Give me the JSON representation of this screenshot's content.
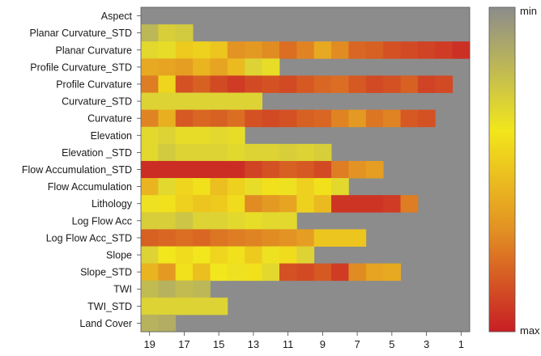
{
  "chart_data": {
    "type": "heatmap",
    "title": "",
    "xlabel": "",
    "ylabel": "",
    "rows": [
      "Aspect",
      "Planar Curvature_STD",
      "Planar Curvature",
      "Profile Curvature_STD",
      "Profile Curvature",
      "Curvature_STD",
      "Curvature",
      "Elevation",
      "Elevation _STD",
      "Flow Accumulation_STD",
      "Flow Accumulation",
      "Lithology",
      "Log Flow Acc",
      "Log Flow Acc_STD",
      "Slope",
      "Slope_STD",
      "TWI",
      "TWI_STD",
      "Land Cover"
    ],
    "columns": [
      19,
      18,
      17,
      16,
      15,
      14,
      13,
      12,
      11,
      10,
      9,
      8,
      7,
      6,
      5,
      4,
      3,
      2,
      1
    ],
    "x_tick_labels": [
      "19",
      "17",
      "15",
      "13",
      "11",
      "9",
      "7",
      "5",
      "3",
      "1"
    ],
    "x_tick_columns": [
      19,
      17,
      15,
      13,
      11,
      9,
      7,
      5,
      3,
      1
    ],
    "colorbar": {
      "min_label": "min",
      "max_label": "max",
      "stops": [
        "#8c8c8c",
        "#f2e61c",
        "#e39323",
        "#c81e24"
      ]
    },
    "empty_color": "#8c8c8c",
    "values": [
      [
        0.0
      ],
      [
        0.18,
        0.28,
        0.26
      ],
      [
        0.32,
        0.34,
        0.48,
        0.46,
        0.5,
        0.68,
        0.66,
        0.7,
        0.78,
        0.72,
        0.6,
        0.7,
        0.8,
        0.82,
        0.86,
        0.88,
        0.9,
        0.92,
        0.95
      ],
      [
        0.6,
        0.62,
        0.64,
        0.56,
        0.62,
        0.54,
        0.3,
        0.34
      ],
      [
        0.74,
        0.44,
        0.86,
        0.82,
        0.88,
        0.92,
        0.88,
        0.86,
        0.88,
        0.84,
        0.8,
        0.78,
        0.84,
        0.88,
        0.86,
        0.82,
        0.9,
        0.88
      ],
      [
        0.3,
        0.3,
        0.3,
        0.3,
        0.3,
        0.3,
        0.3
      ],
      [
        0.72,
        0.58,
        0.84,
        0.8,
        0.82,
        0.78,
        0.86,
        0.88,
        0.86,
        0.82,
        0.8,
        0.72,
        0.66,
        0.76,
        0.72,
        0.84,
        0.86
      ],
      [
        0.32,
        0.3,
        0.34,
        0.34,
        0.32,
        0.34
      ],
      [
        0.32,
        0.26,
        0.3,
        0.3,
        0.3,
        0.32,
        0.3,
        0.3,
        0.28,
        0.3,
        0.28
      ],
      [
        0.96,
        0.96,
        0.96,
        0.96,
        0.96,
        0.96,
        0.9,
        0.86,
        0.82,
        0.84,
        0.88,
        0.74,
        0.68,
        0.64
      ],
      [
        0.56,
        0.32,
        0.44,
        0.4,
        0.52,
        0.46,
        0.34,
        0.4,
        0.36,
        0.46,
        0.4,
        0.32
      ],
      [
        0.36,
        0.4,
        0.46,
        0.5,
        0.48,
        0.42,
        0.7,
        0.66,
        0.62,
        0.46,
        0.54,
        0.94,
        0.94,
        0.94,
        0.92,
        0.74
      ],
      [
        0.28,
        0.28,
        0.24,
        0.3,
        0.3,
        0.32,
        0.34,
        0.32,
        0.32
      ],
      [
        0.82,
        0.8,
        0.78,
        0.8,
        0.76,
        0.74,
        0.72,
        0.7,
        0.68,
        0.64,
        0.5,
        0.5,
        0.5
      ],
      [
        0.3,
        0.38,
        0.42,
        0.38,
        0.44,
        0.4,
        0.48,
        0.36,
        0.42,
        0.3
      ],
      [
        0.56,
        0.66,
        0.4,
        0.52,
        0.38,
        0.36,
        0.4,
        0.32,
        0.86,
        0.88,
        0.84,
        0.92,
        0.7,
        0.62,
        0.6
      ],
      [
        0.2,
        0.16,
        0.2,
        0.18
      ],
      [
        0.3,
        0.3,
        0.3,
        0.3,
        0.3
      ],
      [
        0.16,
        0.14
      ]
    ]
  }
}
